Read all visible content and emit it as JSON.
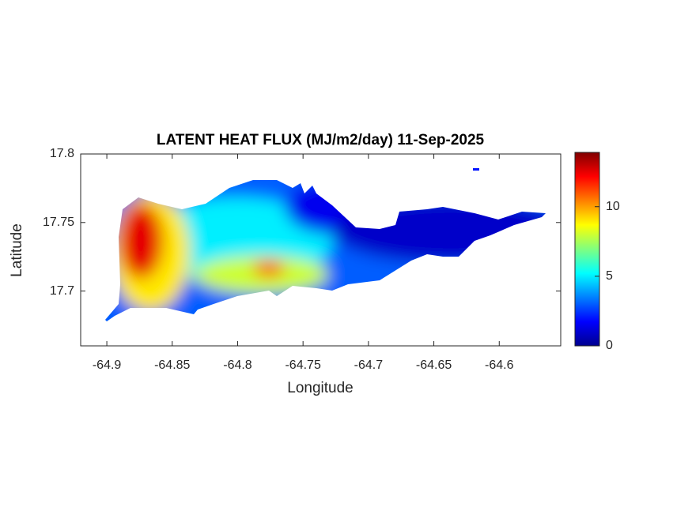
{
  "chart_data": {
    "type": "heatmap",
    "title": "LATENT HEAT FLUX (MJ/m2/day) 11-Sep-2025",
    "xlabel": "Longitude",
    "ylabel": "Latitude",
    "xlim": [
      -64.92,
      -64.553
    ],
    "xticks": [
      -64.9,
      -64.85,
      -64.8,
      -64.75,
      -64.7,
      -64.65,
      -64.6
    ],
    "ylim": [
      17.66,
      17.8
    ],
    "yticks": [
      17.7,
      17.75,
      17.8
    ],
    "colormap": "jet",
    "clim": [
      0,
      13.9
    ],
    "cticks": [
      0,
      5,
      10
    ],
    "values": [
      3,
      5,
      9,
      12.5,
      8,
      11.5,
      1.5,
      1,
      2
    ]
  }
}
